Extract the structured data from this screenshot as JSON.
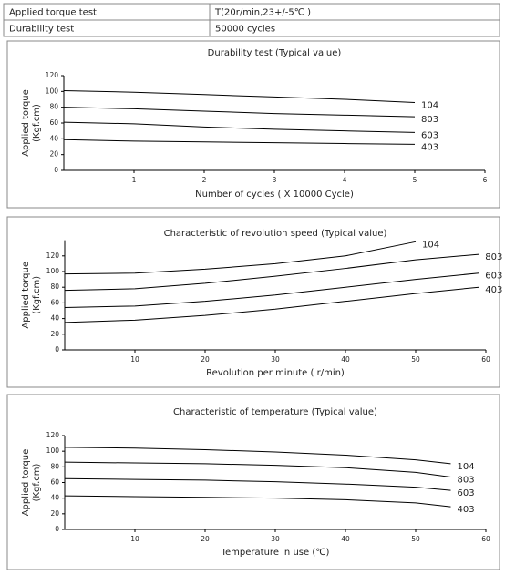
{
  "table": {
    "rows": [
      [
        "Applied torque test",
        "T(20r/min,23+/-5℃ )"
      ],
      [
        "Durability test",
        "50000 cycles"
      ]
    ]
  },
  "chart_data": [
    {
      "type": "line",
      "title": "Durability test  (Typical value)",
      "xlabel": "Number of cycles  ( X 10000 Cycle)",
      "ylabel": [
        "Applied torque",
        "(Kgf.cm)"
      ],
      "x": [
        0,
        1,
        2,
        3,
        4,
        5
      ],
      "xlim": [
        0,
        6
      ],
      "xticks": [
        1,
        2,
        3,
        4,
        5,
        6
      ],
      "ylim": [
        0,
        120
      ],
      "yticks": [
        0,
        20,
        40,
        60,
        80,
        100,
        120
      ],
      "series": [
        {
          "name": "104",
          "color": "#000000",
          "values": [
            101,
            99,
            96,
            93,
            90,
            86
          ]
        },
        {
          "name": "803",
          "color": "#000000",
          "values": [
            80,
            78,
            75,
            72,
            70,
            68
          ]
        },
        {
          "name": "603",
          "color": "#000000",
          "values": [
            61,
            59,
            55,
            52,
            50,
            48
          ]
        },
        {
          "name": "403",
          "color": "#000000",
          "values": [
            39,
            37,
            36,
            35,
            34,
            33
          ]
        }
      ]
    },
    {
      "type": "line",
      "title": "Characteristic of revolution speed  (Typical value)",
      "xlabel": "Revolution per minute  ( r/min)",
      "ylabel": [
        "Applied torque",
        "(Kgf.cm)"
      ],
      "x": [
        0,
        10,
        20,
        30,
        40,
        50,
        59
      ],
      "xlim": [
        0,
        60
      ],
      "xticks": [
        10,
        20,
        30,
        40,
        50,
        60
      ],
      "ylim": [
        0,
        140
      ],
      "yticks": [
        0,
        20,
        40,
        60,
        80,
        100,
        120
      ],
      "series": [
        {
          "name": "104",
          "color": "#000000",
          "values": [
            97,
            98,
            103,
            110,
            120,
            138,
            null
          ]
        },
        {
          "name": "803",
          "color": "#000000",
          "values": [
            76,
            78,
            85,
            94,
            104,
            115,
            122
          ]
        },
        {
          "name": "603",
          "color": "#000000",
          "values": [
            54,
            56,
            62,
            70,
            80,
            90,
            98
          ]
        },
        {
          "name": "403",
          "color": "#000000",
          "values": [
            35,
            38,
            44,
            52,
            62,
            72,
            80
          ]
        }
      ]
    },
    {
      "type": "line",
      "title": "Characteristic of temperature  (Typical value)",
      "xlabel": "Temperature in use  (℃)",
      "ylabel": [
        "Applied torque",
        "(Kgf.cm)"
      ],
      "x": [
        0,
        10,
        20,
        30,
        40,
        50,
        55
      ],
      "xlim": [
        0,
        60
      ],
      "xticks": [
        10,
        20,
        30,
        40,
        50,
        60
      ],
      "ylim": [
        0,
        120
      ],
      "yticks": [
        0,
        20,
        40,
        60,
        80,
        100,
        120
      ],
      "series": [
        {
          "name": "104",
          "color": "#000000",
          "values": [
            105,
            104,
            102,
            99,
            95,
            89,
            84
          ]
        },
        {
          "name": "803",
          "color": "#000000",
          "values": [
            86,
            85,
            84,
            82,
            79,
            73,
            67
          ]
        },
        {
          "name": "603",
          "color": "#000000",
          "values": [
            65,
            64,
            63,
            61,
            58,
            54,
            50
          ]
        },
        {
          "name": "403",
          "color": "#000000",
          "values": [
            43,
            42,
            41,
            40,
            38,
            34,
            29
          ]
        }
      ]
    }
  ]
}
